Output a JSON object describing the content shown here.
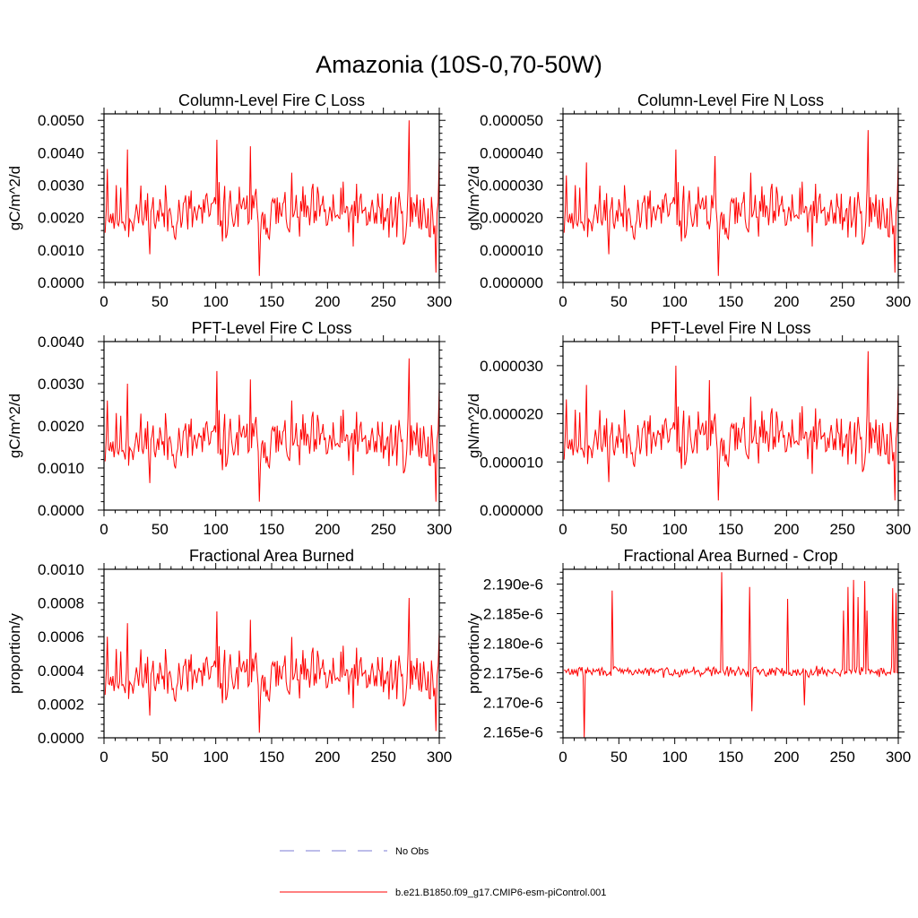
{
  "figure": {
    "title": "Amazonia (10S-0,70-50W)"
  },
  "legend": {
    "entries": [
      {
        "label": "No Obs",
        "color": "#7b7bd6",
        "style": "dashed"
      },
      {
        "label": "b.e21.B1850.f09_g17.CMIP6-esm-piControl.001",
        "color": "#ff0000",
        "style": "solid"
      }
    ]
  },
  "chart_data": [
    {
      "type": "line",
      "title": "Column-Level Fire C Loss",
      "ylabel": "gC/m^2/d",
      "xlim": [
        0,
        300
      ],
      "ylim": [
        0,
        0.0052
      ],
      "xticks": [
        0,
        50,
        100,
        150,
        200,
        250,
        300
      ],
      "xtick_labels": [
        "0",
        "50",
        "100",
        "150",
        "200",
        "250",
        "300"
      ],
      "yticks": [
        0,
        0.001,
        0.002,
        0.003,
        0.004,
        0.005
      ],
      "ytick_labels": [
        "0.0000",
        "0.0010",
        "0.0020",
        "0.0030",
        "0.0040",
        "0.0050"
      ],
      "series": [
        {
          "name": "b.e21.B1850.f09_g17.CMIP6-esm-piControl.001",
          "color": "#ff0000",
          "base": 0.0021,
          "amp": 0.00135,
          "seed": 11,
          "spikes": [
            [
              2,
              0.0035
            ],
            [
              20,
              0.0041
            ],
            [
              100,
              0.0044
            ],
            [
              130,
              0.0042
            ],
            [
              138,
              0.0002
            ],
            [
              272,
              0.005
            ],
            [
              296,
              0.0003
            ],
            [
              299,
              0.0039
            ]
          ]
        }
      ]
    },
    {
      "type": "line",
      "title": "Column-Level Fire N Loss",
      "ylabel": "gN/m^2/d",
      "xlim": [
        0,
        300
      ],
      "ylim": [
        0,
        5.2e-05
      ],
      "xticks": [
        0,
        50,
        100,
        150,
        200,
        250,
        300
      ],
      "xtick_labels": [
        "0",
        "50",
        "100",
        "150",
        "200",
        "250",
        "300"
      ],
      "yticks": [
        0,
        1e-05,
        2e-05,
        3e-05,
        4e-05,
        5e-05
      ],
      "ytick_labels": [
        "0.000000",
        "0.000010",
        "0.000020",
        "0.000030",
        "0.000040",
        "0.000050"
      ],
      "series": [
        {
          "name": "b.e21.B1850.f09_g17.CMIP6-esm-piControl.001",
          "color": "#ff0000",
          "base": 2.1e-05,
          "amp": 1.35e-05,
          "seed": 11,
          "spikes": [
            [
              2,
              3.3e-05
            ],
            [
              20,
              3.7e-05
            ],
            [
              100,
              4.1e-05
            ],
            [
              135,
              3.9e-05
            ],
            [
              138,
              2e-06
            ],
            [
              272,
              4.7e-05
            ],
            [
              296,
              3e-06
            ],
            [
              299,
              3.7e-05
            ]
          ]
        }
      ]
    },
    {
      "type": "line",
      "title": "PFT-Level Fire C Loss",
      "ylabel": "gC/m^2/d",
      "xlim": [
        0,
        300
      ],
      "ylim": [
        0,
        0.004
      ],
      "xticks": [
        0,
        50,
        100,
        150,
        200,
        250,
        300
      ],
      "xtick_labels": [
        "0",
        "50",
        "100",
        "150",
        "200",
        "250",
        "300"
      ],
      "yticks": [
        0,
        0.001,
        0.002,
        0.003,
        0.004
      ],
      "ytick_labels": [
        "0.0000",
        "0.0010",
        "0.0020",
        "0.0030",
        "0.0040"
      ],
      "series": [
        {
          "name": "b.e21.B1850.f09_g17.CMIP6-esm-piControl.001",
          "color": "#ff0000",
          "base": 0.0016,
          "amp": 0.00105,
          "seed": 11,
          "spikes": [
            [
              2,
              0.0026
            ],
            [
              20,
              0.003
            ],
            [
              100,
              0.0033
            ],
            [
              130,
              0.0031
            ],
            [
              138,
              0.0002
            ],
            [
              272,
              0.0036
            ],
            [
              296,
              0.0002
            ],
            [
              299,
              0.0029
            ]
          ]
        }
      ]
    },
    {
      "type": "line",
      "title": "PFT-Level Fire N Loss",
      "ylabel": "gN/m^2/d",
      "xlim": [
        0,
        300
      ],
      "ylim": [
        0,
        3.5e-05
      ],
      "xticks": [
        0,
        50,
        100,
        150,
        200,
        250,
        300
      ],
      "xtick_labels": [
        "0",
        "50",
        "100",
        "150",
        "200",
        "250",
        "300"
      ],
      "yticks": [
        0,
        1e-05,
        2e-05,
        3e-05
      ],
      "ytick_labels": [
        "0.000000",
        "0.000010",
        "0.000020",
        "0.000030"
      ],
      "series": [
        {
          "name": "b.e21.B1850.f09_g17.CMIP6-esm-piControl.001",
          "color": "#ff0000",
          "base": 1.45e-05,
          "amp": 9.5e-06,
          "seed": 11,
          "spikes": [
            [
              2,
              2.3e-05
            ],
            [
              20,
              2.6e-05
            ],
            [
              100,
              3e-05
            ],
            [
              130,
              2.7e-05
            ],
            [
              138,
              2e-06
            ],
            [
              272,
              3.3e-05
            ],
            [
              296,
              2e-06
            ],
            [
              299,
              2.6e-05
            ]
          ]
        }
      ]
    },
    {
      "type": "line",
      "title": "Fractional Area Burned",
      "ylabel": "proportion/y",
      "xlim": [
        0,
        300
      ],
      "ylim": [
        0,
        0.001
      ],
      "xticks": [
        0,
        50,
        100,
        150,
        200,
        250,
        300
      ],
      "xtick_labels": [
        "0",
        "50",
        "100",
        "150",
        "200",
        "250",
        "300"
      ],
      "yticks": [
        0,
        0.0002,
        0.0004,
        0.0006,
        0.0008,
        0.001
      ],
      "ytick_labels": [
        "0.0000",
        "0.0002",
        "0.0004",
        "0.0006",
        "0.0008",
        "0.0010"
      ],
      "series": [
        {
          "name": "b.e21.B1850.f09_g17.CMIP6-esm-piControl.001",
          "color": "#ff0000",
          "base": 0.00036,
          "amp": 0.00025,
          "seed": 11,
          "spikes": [
            [
              2,
              0.0006
            ],
            [
              20,
              0.00068
            ],
            [
              100,
              0.00075
            ],
            [
              130,
              0.0007
            ],
            [
              138,
              3e-05
            ],
            [
              272,
              0.00083
            ],
            [
              296,
              4e-05
            ],
            [
              299,
              0.00063
            ]
          ]
        }
      ]
    },
    {
      "type": "line",
      "title": "Fractional Area Burned - Crop",
      "ylabel": "proportion/y",
      "xlim": [
        0,
        300
      ],
      "ylim": [
        2.164e-06,
        2.1925e-06
      ],
      "xticks": [
        0,
        50,
        100,
        150,
        200,
        250,
        300
      ],
      "xtick_labels": [
        "0",
        "50",
        "100",
        "150",
        "200",
        "250",
        "300"
      ],
      "yticks": [
        2.165e-06,
        2.17e-06,
        2.175e-06,
        2.18e-06,
        2.185e-06,
        2.19e-06
      ],
      "ytick_labels": [
        "2.165e-6",
        "2.170e-6",
        "2.175e-6",
        "2.180e-6",
        "2.185e-6",
        "2.190e-6"
      ],
      "series": [
        {
          "name": "b.e21.B1850.f09_g17.CMIP6-esm-piControl.001",
          "color": "#ff0000",
          "base": 2.1752e-06,
          "amp": 1.2e-09,
          "seed": 29,
          "spikes": [
            [
              18,
              2.164e-06
            ],
            [
              43,
              2.1889e-06
            ],
            [
              141,
              2.192e-06
            ],
            [
              166,
              2.1895e-06
            ],
            [
              168,
              2.1685e-06
            ],
            [
              200,
              2.1875e-06
            ],
            [
              215,
              2.1695e-06
            ],
            [
              250,
              2.1855e-06
            ],
            [
              254,
              2.1895e-06
            ],
            [
              259,
              2.1907e-06
            ],
            [
              263,
              2.1878e-06
            ],
            [
              269,
              2.1905e-06
            ],
            [
              271,
              2.1855e-06
            ],
            [
              294,
              2.1893e-06
            ],
            [
              297,
              2.1885e-06
            ]
          ]
        }
      ]
    }
  ]
}
